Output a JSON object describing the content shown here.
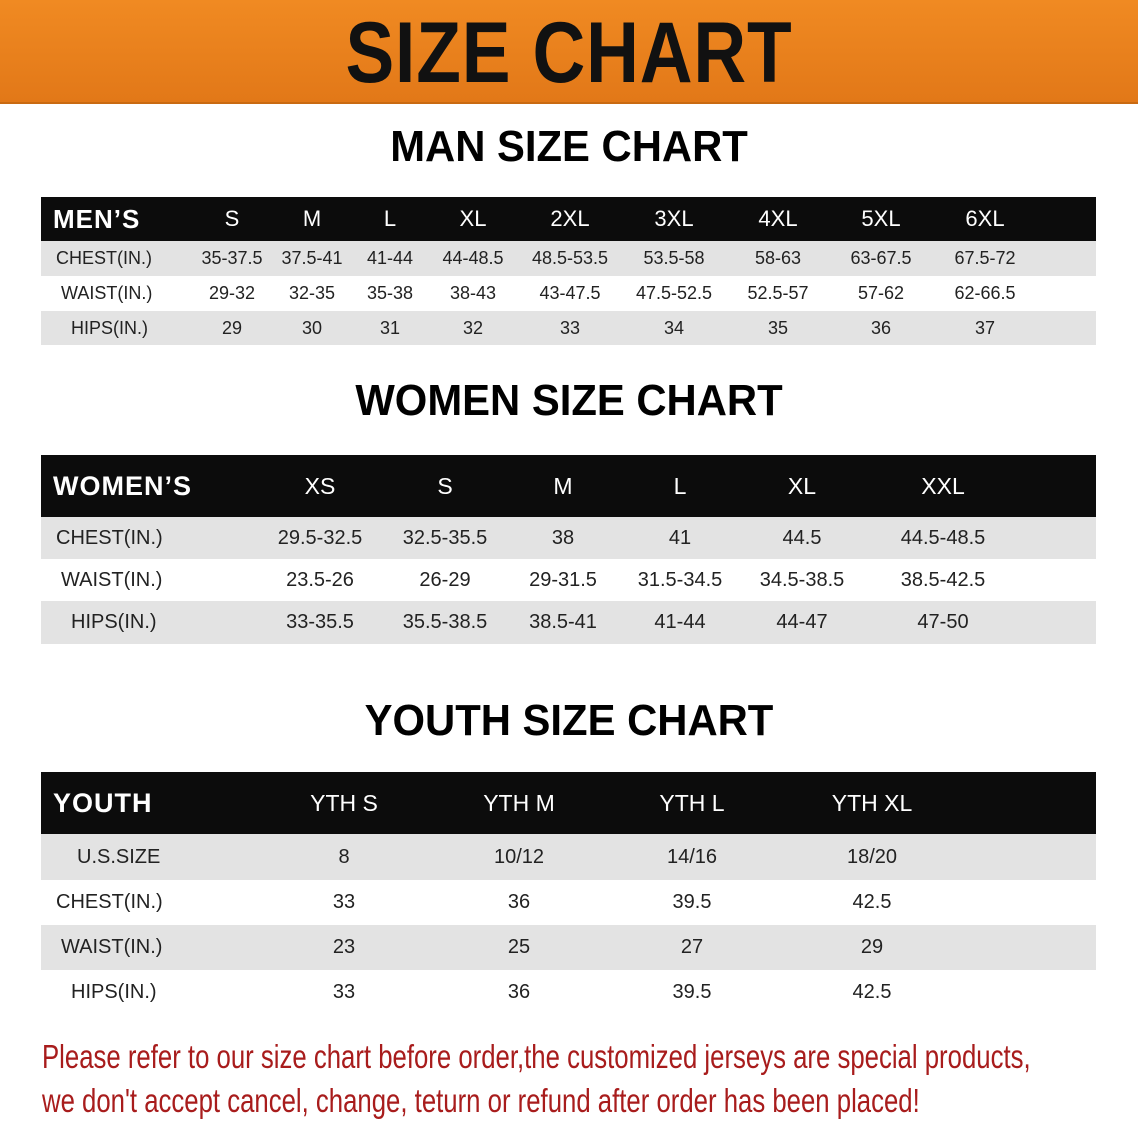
{
  "banner": {
    "title": "SIZE CHART",
    "color": "#e8801f"
  },
  "men": {
    "title": "MAN SIZE CHART",
    "header": [
      "MEN’S",
      "S",
      "M",
      "L",
      "XL",
      "2XL",
      "3XL",
      "4XL",
      "5XL",
      "6XL"
    ],
    "rows": [
      [
        "CHEST(IN.)",
        "35-37.5",
        "37.5-41",
        "41-44",
        "44-48.5",
        "48.5-53.5",
        "53.5-58",
        "58-63",
        "63-67.5",
        "67.5-72"
      ],
      [
        "WAIST(IN.)",
        "29-32",
        "32-35",
        "35-38",
        "38-43",
        "43-47.5",
        "47.5-52.5",
        "52.5-57",
        "57-62",
        "62-66.5"
      ],
      [
        "HIPS(IN.)",
        "29",
        "30",
        "31",
        "32",
        "33",
        "34",
        "35",
        "36",
        "37"
      ]
    ]
  },
  "women": {
    "title": "WOMEN SIZE CHART",
    "header": [
      "WOMEN’S",
      "XS",
      "S",
      "M",
      "L",
      "XL",
      "XXL"
    ],
    "rows": [
      [
        "CHEST(IN.)",
        "29.5-32.5",
        "32.5-35.5",
        "38",
        "41",
        "44.5",
        "44.5-48.5"
      ],
      [
        "WAIST(IN.)",
        "23.5-26",
        "26-29",
        "29-31.5",
        "31.5-34.5",
        "34.5-38.5",
        "38.5-42.5"
      ],
      [
        "HIPS(IN.)",
        "33-35.5",
        "35.5-38.5",
        "38.5-41",
        "41-44",
        "44-47",
        "47-50"
      ]
    ]
  },
  "youth": {
    "title": "YOUTH SIZE CHART",
    "header": [
      "YOUTH",
      "YTH S",
      "YTH M",
      "YTH L",
      "YTH XL"
    ],
    "rows": [
      [
        "U.S.SIZE",
        "8",
        "10/12",
        "14/16",
        "18/20"
      ],
      [
        "CHEST(IN.)",
        "33",
        "36",
        "39.5",
        "42.5"
      ],
      [
        "WAIST(IN.)",
        "23",
        "25",
        "27",
        "29"
      ],
      [
        "HIPS(IN.)",
        "33",
        "36",
        "39.5",
        "42.5"
      ]
    ]
  },
  "notice": {
    "line1": "Please refer to our size chart before order,the customized jerseys are special products,",
    "line2": "we don't accept cancel, change, teturn or refund after order has been placed!",
    "color": "#a81c1c"
  }
}
